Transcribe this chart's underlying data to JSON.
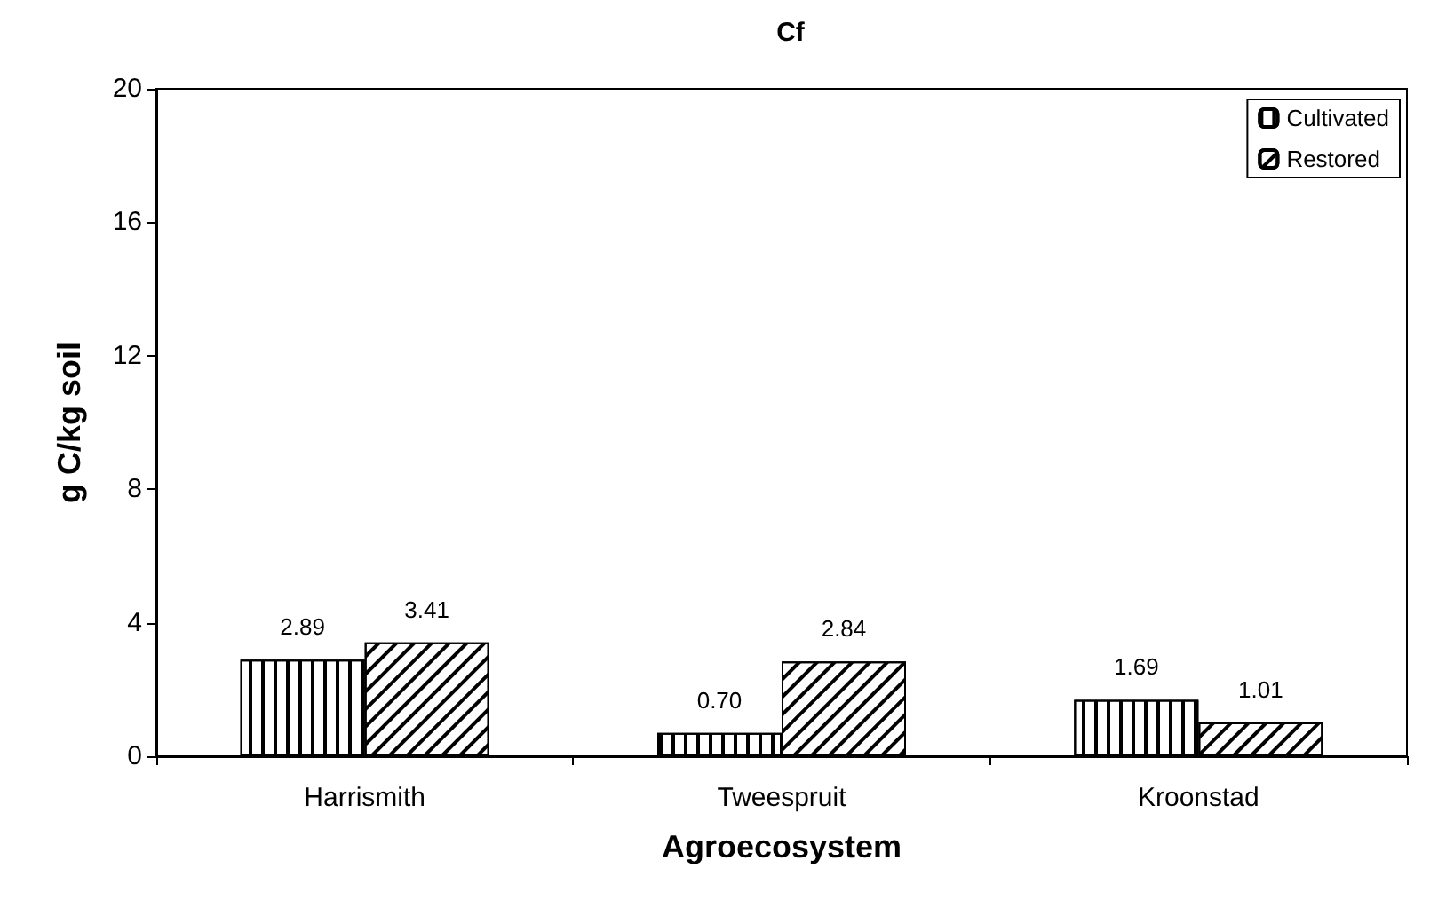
{
  "chart_data": {
    "type": "bar",
    "title": "Cf",
    "xlabel": "Agroecosystem",
    "ylabel": "g C/kg soil",
    "categories": [
      "Harrismith",
      "Tweespruit",
      "Kroonstad"
    ],
    "series": [
      {
        "name": "Cultivated",
        "color": "#000000",
        "values": [
          2.89,
          0.7,
          1.69
        ],
        "value_labels": [
          "2.89",
          "0.70",
          "1.69"
        ]
      },
      {
        "name": "Restored",
        "color": "#000000",
        "values": [
          3.41,
          2.84,
          1.01
        ],
        "value_labels": [
          "3.41",
          "2.84",
          "1.01"
        ]
      }
    ],
    "ylim": [
      0,
      20
    ],
    "yticks": [
      0,
      4,
      8,
      12,
      16,
      20
    ],
    "grid": false,
    "legend": "top right"
  }
}
